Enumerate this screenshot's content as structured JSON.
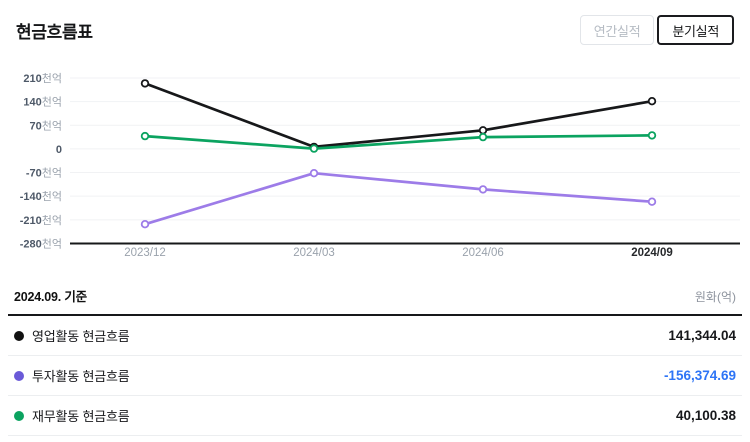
{
  "header": {
    "title": "현금흐름표"
  },
  "toolbar": {
    "annual_label": "연간실적",
    "quarterly_label": "분기실적",
    "active": "분기실적"
  },
  "chart_data": {
    "type": "line",
    "categories": [
      "2023/12",
      "2024/03",
      "2024/06",
      "2024/09"
    ],
    "active_category": "2024/09",
    "unit": "천억",
    "series": [
      {
        "name": "영업활동 현금흐름",
        "color": "#17181a",
        "values": [
          194,
          6,
          55,
          141.34
        ]
      },
      {
        "name": "투자활동 현금흐름",
        "color": "#9d7ce8",
        "values": [
          -223,
          -72,
          -120,
          -156.37
        ]
      },
      {
        "name": "재무활동 현금흐름",
        "color": "#0ba360",
        "values": [
          38,
          1,
          35,
          40.1
        ]
      }
    ],
    "yticks": [
      210,
      140,
      70,
      0,
      -70,
      -140,
      -210,
      -280
    ],
    "ylim": [
      -280,
      250
    ],
    "grid": "horizontal",
    "legend_position": "none",
    "colors": {
      "grid": "#f1f2f4",
      "axis": "#17181a"
    }
  },
  "table": {
    "caption": "2024.09. 기준",
    "unit_label": "원화(억)",
    "rows": [
      {
        "label": "영업활동 현금흐름",
        "value": "141,344.04",
        "bullet_color": "#111111",
        "value_color": "#17181b"
      },
      {
        "label": "투자활동 현금흐름",
        "value": "-156,374.69",
        "bullet_color": "#6a5ad8",
        "value_color": "#2d74f6"
      },
      {
        "label": "재무활동 현금흐름",
        "value": "40,100.38",
        "bullet_color": "#0ba360",
        "value_color": "#17181b"
      }
    ]
  }
}
